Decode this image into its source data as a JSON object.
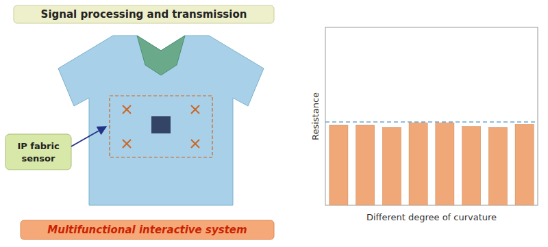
{
  "chart_data": {
    "type": "bar",
    "title": "Signal processing and transmission",
    "subtitle": "Multifunctional interactive system",
    "annotations": [
      "IP fabric\nsensor"
    ],
    "xlabel": "Different degree of curvature",
    "ylabel": "Resistance",
    "categories": [
      null,
      null,
      null,
      null,
      null,
      null,
      null,
      null
    ],
    "values": [
      0.72,
      0.72,
      0.7,
      0.74,
      0.74,
      0.71,
      0.7,
      0.73
    ],
    "color": "#f0a878",
    "ylim": [
      0,
      1.6
    ],
    "tick_labels": false,
    "grid": false,
    "hline": {
      "value": 0.75,
      "color": "#5599cc"
    }
  }
}
